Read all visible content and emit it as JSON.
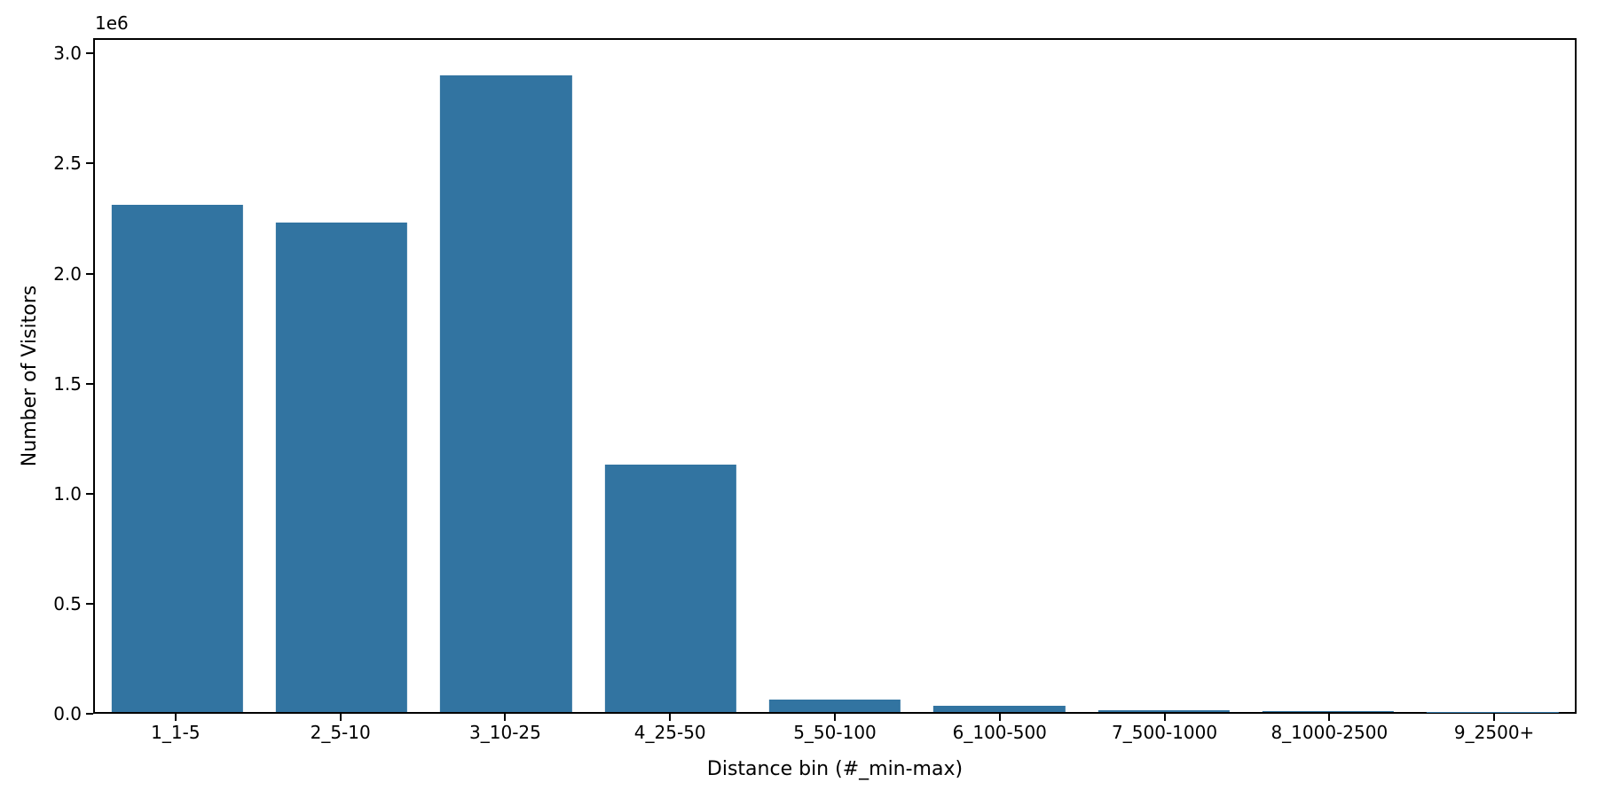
{
  "figure": {
    "background": "#ffffff"
  },
  "chart_data": {
    "type": "bar",
    "title": "",
    "xlabel": "Distance bin (#_min-max)",
    "ylabel": "Number of Visitors",
    "y_offset_text": "1e6",
    "categories": [
      "1_1-5",
      "2_5-10",
      "3_10-25",
      "4_25-50",
      "5_50-100",
      "6_100-500",
      "7_500-1000",
      "8_1000-2500",
      "9_2500+"
    ],
    "values": [
      2315000,
      2235000,
      2910000,
      1130000,
      56000,
      30000,
      10000,
      4000,
      1000
    ],
    "bar_color": "#3274a1",
    "axis_color": "#000000",
    "text_color": "#000000",
    "ylim": [
      0,
      3070000
    ],
    "yticks": [
      0,
      500000,
      1000000,
      1500000,
      2000000,
      2500000,
      3000000
    ],
    "ytick_labels": [
      "0.0",
      "0.5",
      "1.0",
      "1.5",
      "2.0",
      "2.5",
      "3.0"
    ],
    "grid": false,
    "legend": null,
    "bar_width_fraction": 0.8
  }
}
